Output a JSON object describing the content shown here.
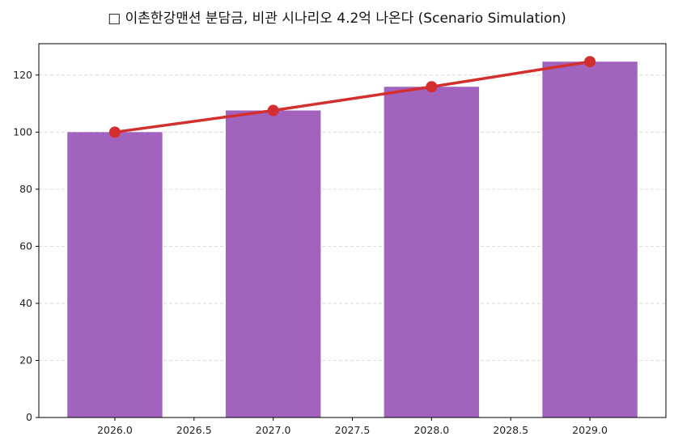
{
  "chart_data": {
    "type": "bar+line",
    "title": "□ 이촌한강맨션 분담금, 비관 시나리오 4.2억 나온다 (Scenario Simulation)",
    "xlabel": "",
    "ylabel": "",
    "x": [
      2026,
      2027,
      2028,
      2029
    ],
    "bar_values": [
      100,
      107.6,
      115.9,
      124.7
    ],
    "line_values": [
      100,
      107.6,
      115.9,
      124.7
    ],
    "xlim": [
      2025.52,
      2029.48
    ],
    "ylim": [
      0,
      131
    ],
    "xticks": [
      "2026.0",
      "2026.5",
      "2027.0",
      "2027.5",
      "2028.0",
      "2028.5",
      "2029.0"
    ],
    "yticks": [
      "0",
      "20",
      "40",
      "60",
      "80",
      "100",
      "120"
    ],
    "bar_width": 0.6,
    "grid": "y-dashed",
    "colors": {
      "bar": "#a163bd",
      "line": "#d32f2f",
      "grid": "#d3d3d3"
    }
  }
}
